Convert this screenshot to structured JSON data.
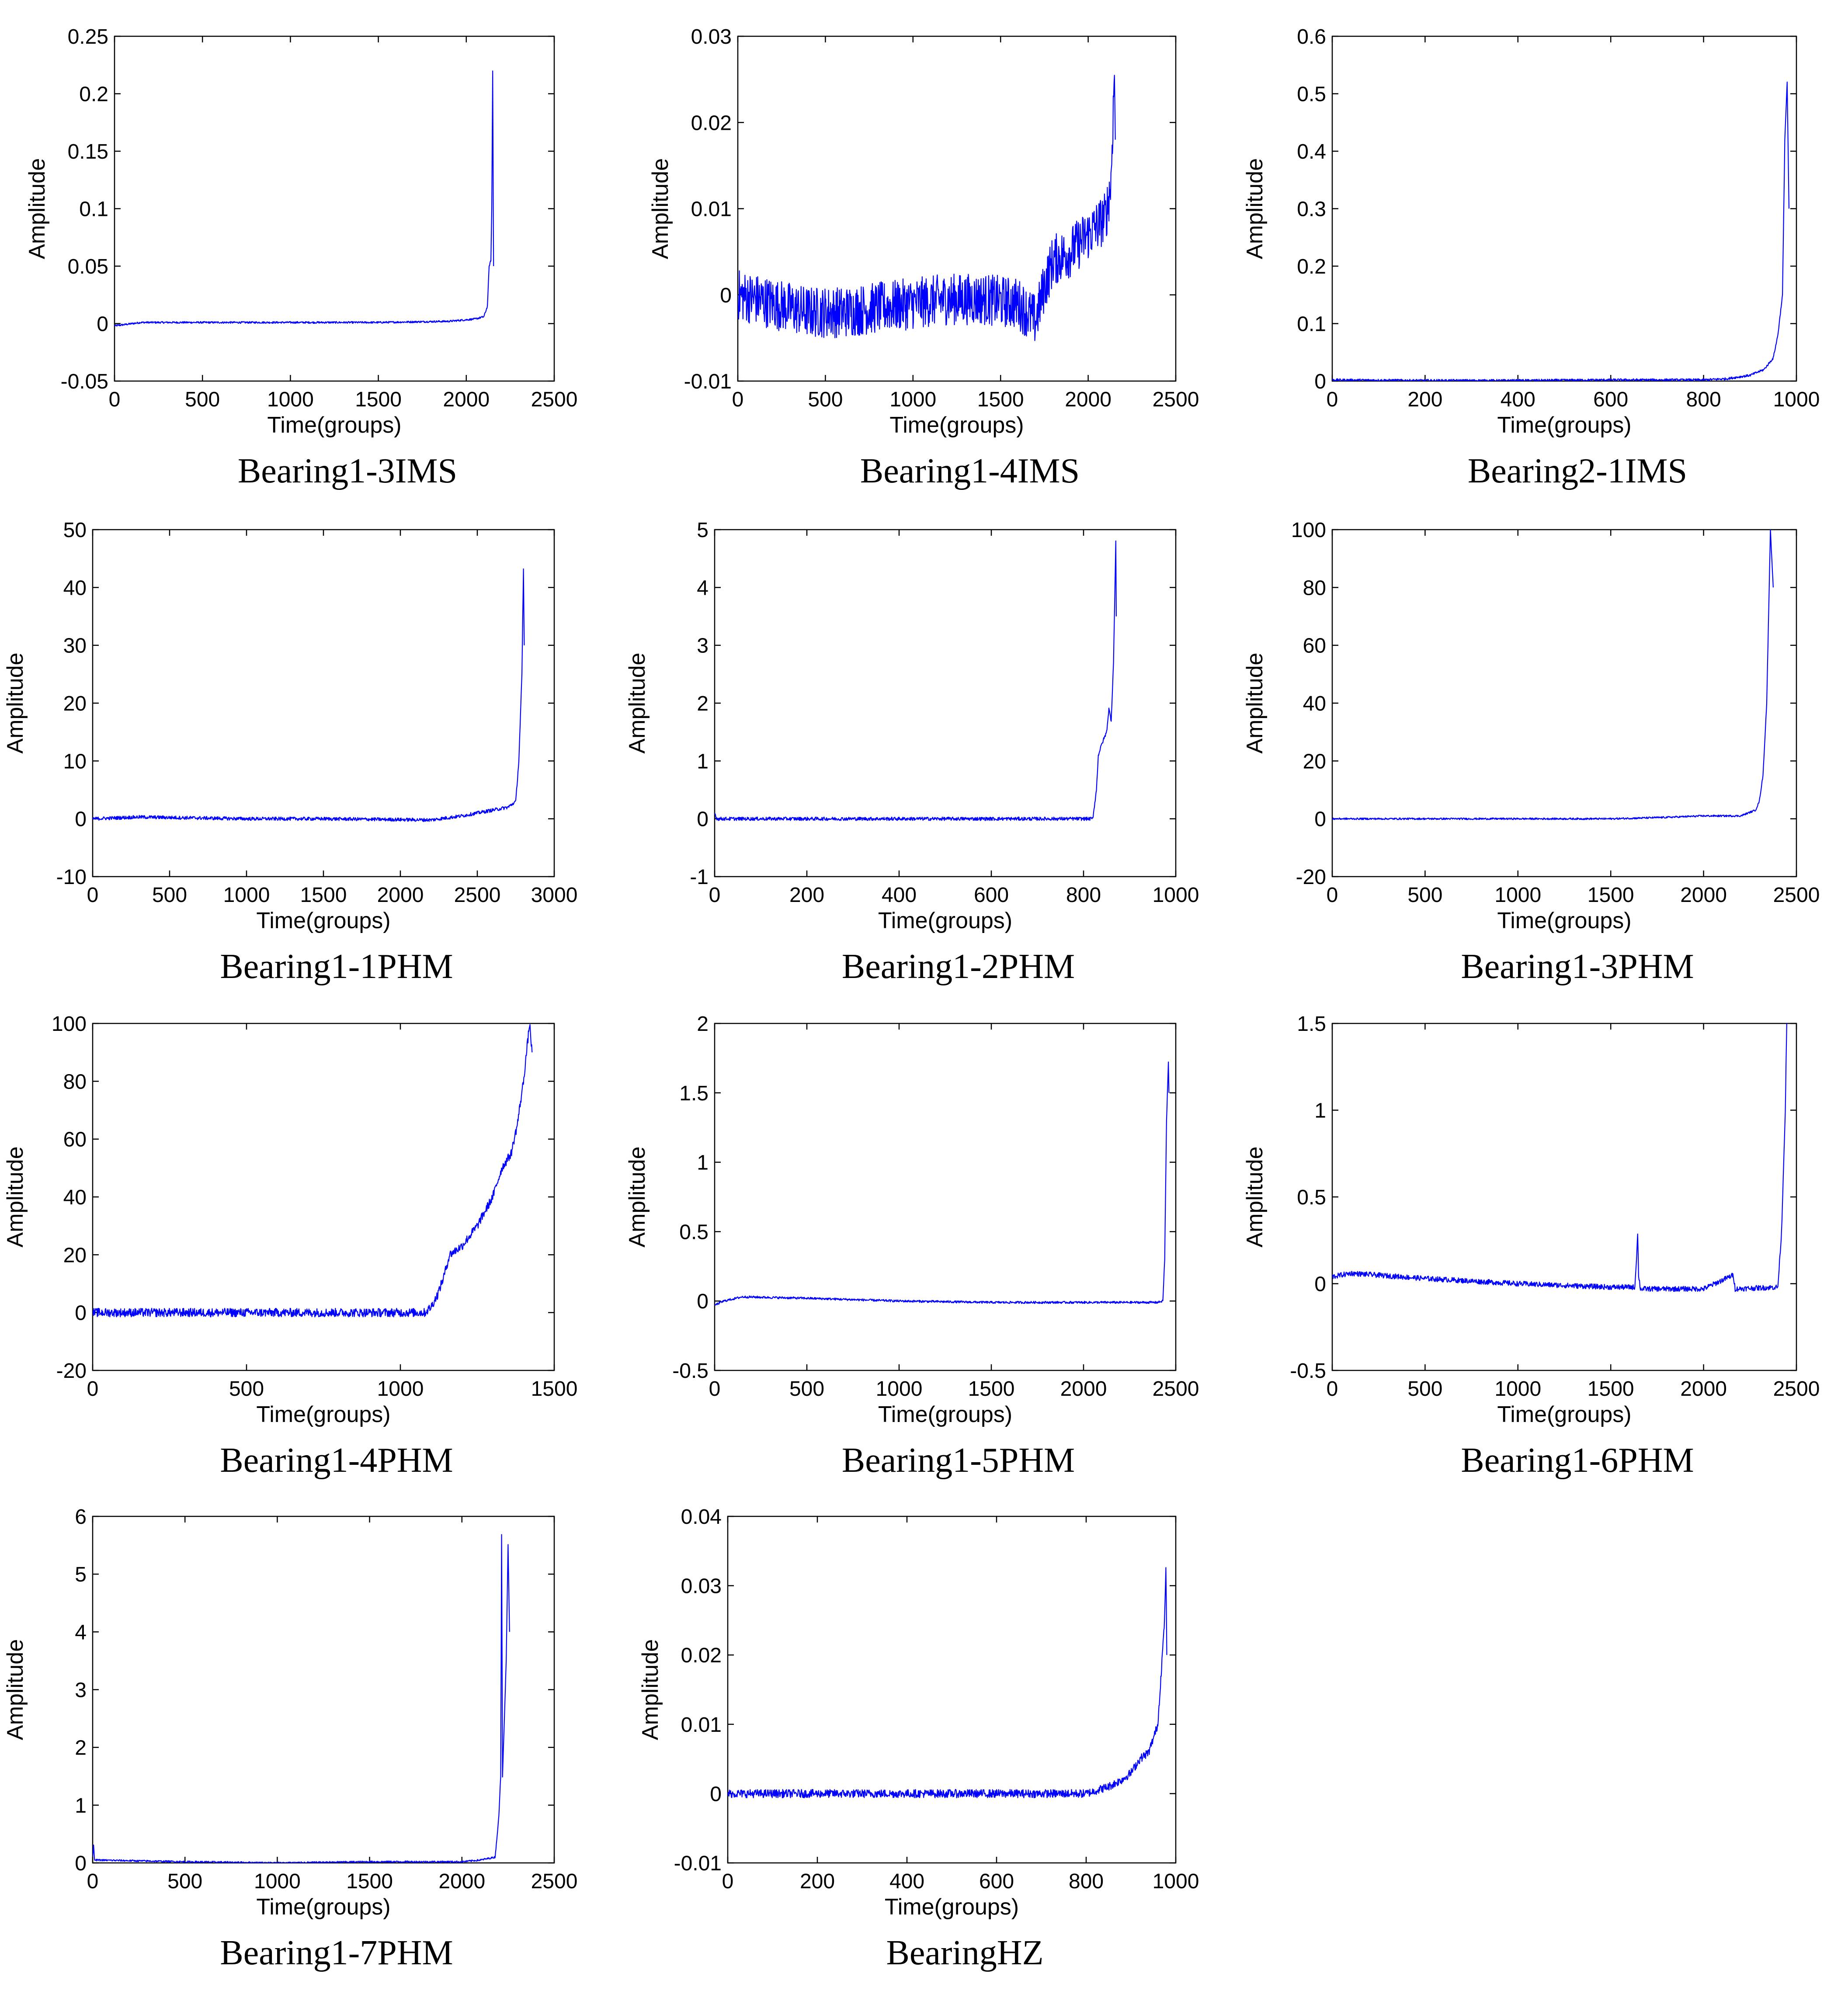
{
  "figure": {
    "series_color": "#0000ff"
  },
  "chart_data": [
    {
      "type": "line",
      "caption": "Bearing1-3IMS",
      "xlabel": "Time(groups)",
      "ylabel": "Amplitude",
      "xlim": [
        0,
        2500
      ],
      "ylim": [
        -0.05,
        0.25
      ],
      "xticks": [
        0,
        500,
        1000,
        1500,
        2000,
        2500
      ],
      "xtick_labels": [
        "0",
        "500",
        "1000",
        "1500",
        "2000",
        "2500"
      ],
      "yticks": [
        -0.05,
        0,
        0.05,
        0.1,
        0.15,
        0.2,
        0.25
      ],
      "ytick_labels": [
        "-0.05",
        "0",
        "0.05",
        "0.1",
        "0.15",
        "0.2",
        "0.25"
      ],
      "series": [
        {
          "name": "Bearing1-3IMS",
          "x": [
            0,
            150,
            500,
            1000,
            1500,
            1900,
            2050,
            2100,
            2120,
            2130,
            2140,
            2145,
            2150,
            2155
          ],
          "y": [
            -0.002,
            0.001,
            0.001,
            0.001,
            0.001,
            0.002,
            0.004,
            0.006,
            0.015,
            0.05,
            0.055,
            0.1,
            0.22,
            0.05
          ],
          "noise": 0.0008
        }
      ]
    },
    {
      "type": "line",
      "caption": "Bearing1-4IMS",
      "xlabel": "Time(groups)",
      "ylabel": "Amplitude",
      "xlim": [
        0,
        2500
      ],
      "ylim": [
        -0.01,
        0.03
      ],
      "xticks": [
        0,
        500,
        1000,
        1500,
        2000,
        2500
      ],
      "xtick_labels": [
        "0",
        "500",
        "1000",
        "1500",
        "2000",
        "2500"
      ],
      "yticks": [
        -0.01,
        0,
        0.01,
        0.02,
        0.03
      ],
      "ytick_labels": [
        "-0.01",
        "0",
        "0.01",
        "0.02",
        "0.03"
      ],
      "series": [
        {
          "name": "Bearing1-4IMS",
          "x": [
            0,
            200,
            400,
            600,
            800,
            1000,
            1200,
            1400,
            1600,
            1700,
            1750,
            1800,
            1900,
            2000,
            2050,
            2100,
            2130,
            2150,
            2155
          ],
          "y": [
            0.0,
            -0.001,
            -0.002,
            -0.002,
            -0.0015,
            -0.001,
            -0.0005,
            -0.0005,
            -0.001,
            -0.003,
            0.001,
            0.004,
            0.005,
            0.007,
            0.008,
            0.009,
            0.013,
            0.026,
            0.018
          ],
          "noise": 0.003
        }
      ]
    },
    {
      "type": "line",
      "caption": "Bearing2-1IMS",
      "xlabel": "Time(groups)",
      "ylabel": "Amplitude",
      "xlim": [
        0,
        1000
      ],
      "ylim": [
        0,
        0.6
      ],
      "xticks": [
        0,
        200,
        400,
        600,
        800,
        1000
      ],
      "xtick_labels": [
        "0",
        "200",
        "400",
        "600",
        "800",
        "1000"
      ],
      "yticks": [
        0,
        0.1,
        0.2,
        0.3,
        0.4,
        0.5,
        0.6
      ],
      "ytick_labels": [
        "0",
        "0.1",
        "0.2",
        "0.3",
        "0.4",
        "0.5",
        "0.6"
      ],
      "series": [
        {
          "name": "Bearing2-1IMS",
          "x": [
            0,
            200,
            400,
            600,
            800,
            850,
            900,
            930,
            950,
            960,
            970,
            975,
            980,
            984
          ],
          "y": [
            0.002,
            0.001,
            0.001,
            0.002,
            0.002,
            0.004,
            0.01,
            0.02,
            0.04,
            0.08,
            0.15,
            0.42,
            0.52,
            0.3
          ],
          "noise": 0.002
        }
      ]
    },
    {
      "type": "line",
      "caption": "Bearing1-1PHM",
      "xlabel": "Time(groups)",
      "ylabel": "Amplitude",
      "xlim": [
        0,
        3000
      ],
      "ylim": [
        -10,
        50
      ],
      "xticks": [
        0,
        500,
        1000,
        1500,
        2000,
        2500,
        3000
      ],
      "xtick_labels": [
        "0",
        "500",
        "1000",
        "1500",
        "2000",
        "2500",
        "3000"
      ],
      "yticks": [
        -10,
        0,
        10,
        20,
        30,
        40,
        50
      ],
      "ytick_labels": [
        "-10",
        "0",
        "10",
        "20",
        "30",
        "40",
        "50"
      ],
      "series": [
        {
          "name": "Bearing1-1PHM",
          "x": [
            0,
            300,
            1000,
            1500,
            2200,
            2400,
            2600,
            2700,
            2750,
            2770,
            2790,
            2800,
            2805
          ],
          "y": [
            0,
            0.3,
            0,
            0,
            -0.2,
            0.5,
            1.5,
            2,
            3,
            10,
            25,
            43,
            30
          ],
          "noise": 0.3
        }
      ]
    },
    {
      "type": "line",
      "caption": "Bearing1-2PHM",
      "xlabel": "Time(groups)",
      "ylabel": "Amplitude",
      "xlim": [
        0,
        1000
      ],
      "ylim": [
        -1,
        5
      ],
      "xticks": [
        0,
        200,
        400,
        600,
        800,
        1000
      ],
      "xtick_labels": [
        "0",
        "200",
        "400",
        "600",
        "800",
        "1000"
      ],
      "yticks": [
        -1,
        0,
        1,
        2,
        3,
        4,
        5
      ],
      "ytick_labels": [
        "-1",
        "0",
        "1",
        "2",
        "3",
        "4",
        "5"
      ],
      "series": [
        {
          "name": "Bearing1-2PHM",
          "x": [
            0,
            5,
            10,
            200,
            400,
            600,
            820,
            828,
            832,
            840,
            850,
            855,
            860,
            865,
            870,
            871
          ],
          "y": [
            0.1,
            0,
            0,
            0,
            0,
            0,
            0,
            0.5,
            1.1,
            1.3,
            1.5,
            1.9,
            1.7,
            2.7,
            4.8,
            3.5
          ],
          "noise": 0.03
        }
      ]
    },
    {
      "type": "line",
      "caption": "Bearing1-3PHM",
      "xlabel": "Time(groups)",
      "ylabel": "Amplitude",
      "xlim": [
        0,
        2500
      ],
      "ylim": [
        -20,
        100
      ],
      "xticks": [
        0,
        500,
        1000,
        1500,
        2000,
        2500
      ],
      "xtick_labels": [
        "0",
        "500",
        "1000",
        "1500",
        "2000",
        "2500"
      ],
      "yticks": [
        -20,
        0,
        20,
        40,
        60,
        80,
        100
      ],
      "ytick_labels": [
        "-20",
        "0",
        "20",
        "40",
        "60",
        "80",
        "100"
      ],
      "series": [
        {
          "name": "Bearing1-3PHM",
          "x": [
            0,
            500,
            1000,
            1500,
            1800,
            2000,
            2200,
            2280,
            2300,
            2320,
            2340,
            2360,
            2375
          ],
          "y": [
            0,
            0,
            0,
            0,
            0.5,
            1,
            1,
            3,
            6,
            15,
            40,
            100,
            80
          ],
          "noise": 0.3
        }
      ]
    },
    {
      "type": "line",
      "caption": "Bearing1-4PHM",
      "xlabel": "Time(groups)",
      "ylabel": "Amplitude",
      "xlim": [
        0,
        1500
      ],
      "ylim": [
        -20,
        100
      ],
      "xticks": [
        0,
        500,
        1000,
        1500
      ],
      "xtick_labels": [
        "0",
        "500",
        "1000",
        "1500"
      ],
      "yticks": [
        -20,
        0,
        20,
        40,
        60,
        80,
        100
      ],
      "ytick_labels": [
        "-20",
        "0",
        "20",
        "40",
        "60",
        "80",
        "100"
      ],
      "series": [
        {
          "name": "Bearing1-4PHM",
          "x": [
            0,
            500,
            1000,
            1080,
            1100,
            1120,
            1140,
            1160,
            1200,
            1250,
            1300,
            1330,
            1360,
            1380,
            1400,
            1420,
            1428
          ],
          "y": [
            0,
            0,
            0,
            0,
            2,
            6,
            12,
            20,
            23,
            30,
            40,
            50,
            55,
            65,
            80,
            100,
            90
          ],
          "noise": 1.5
        }
      ]
    },
    {
      "type": "line",
      "caption": "Bearing1-5PHM",
      "xlabel": "Time(groups)",
      "ylabel": "Amplitude",
      "xlim": [
        0,
        2500
      ],
      "ylim": [
        -0.5,
        2
      ],
      "xticks": [
        0,
        500,
        1000,
        1500,
        2000,
        2500
      ],
      "xtick_labels": [
        "0",
        "500",
        "1000",
        "1500",
        "2000",
        "2500"
      ],
      "yticks": [
        -0.5,
        0,
        0.5,
        1,
        1.5,
        2
      ],
      "ytick_labels": [
        "-0.5",
        "0",
        "0.5",
        "1",
        "1.5",
        "2"
      ],
      "series": [
        {
          "name": "Bearing1-5PHM",
          "x": [
            0,
            50,
            150,
            500,
            1000,
            1500,
            2000,
            2400,
            2430,
            2440,
            2450,
            2460,
            2463
          ],
          "y": [
            -0.03,
            0,
            0.03,
            0.02,
            0,
            -0.01,
            -0.01,
            -0.01,
            0,
            0.3,
            1.3,
            1.72,
            1.5
          ],
          "noise": 0.008
        }
      ]
    },
    {
      "type": "line",
      "caption": "Bearing1-6PHM",
      "xlabel": "Time(groups)",
      "ylabel": "Amplitude",
      "xlim": [
        0,
        2500
      ],
      "ylim": [
        -0.5,
        1.5
      ],
      "xticks": [
        0,
        500,
        1000,
        1500,
        2000,
        2500
      ],
      "xtick_labels": [
        "0",
        "500",
        "1000",
        "1500",
        "2000",
        "2500"
      ],
      "yticks": [
        -0.5,
        0,
        0.5,
        1,
        1.5
      ],
      "ytick_labels": [
        "-0.5",
        "0",
        "0.5",
        "1",
        "1.5"
      ],
      "series": [
        {
          "name": "Bearing1-6PHM",
          "x": [
            0,
            100,
            500,
            1000,
            1500,
            1630,
            1645,
            1650,
            1660,
            1700,
            2000,
            2160,
            2170,
            2400,
            2420,
            2440,
            2448
          ],
          "y": [
            0.04,
            0.06,
            0.03,
            0,
            -0.02,
            -0.02,
            0.28,
            0.05,
            -0.03,
            -0.03,
            -0.03,
            0.05,
            -0.03,
            -0.02,
            0.3,
            1.0,
            1.5
          ],
          "noise": 0.015
        }
      ]
    },
    {
      "type": "line",
      "caption": "Bearing1-7PHM",
      "xlabel": "Time(groups)",
      "ylabel": "Amplitude",
      "xlim": [
        0,
        2500
      ],
      "ylim": [
        0,
        6
      ],
      "xticks": [
        0,
        500,
        1000,
        1500,
        2000,
        2500
      ],
      "xtick_labels": [
        "0",
        "500",
        "1000",
        "1500",
        "2000",
        "2500"
      ],
      "yticks": [
        0,
        1,
        2,
        3,
        4,
        5,
        6
      ],
      "ytick_labels": [
        "0",
        "1",
        "2",
        "3",
        "4",
        "5",
        "6"
      ],
      "series": [
        {
          "name": "Bearing1-7PHM",
          "x": [
            0,
            5,
            10,
            500,
            1000,
            1500,
            2000,
            2100,
            2180,
            2200,
            2210,
            2215,
            2220,
            2230,
            2240,
            2250,
            2258
          ],
          "y": [
            0.1,
            0.3,
            0.05,
            0.02,
            0.0,
            0.02,
            0.02,
            0.05,
            0.1,
            0.8,
            1.5,
            5.7,
            1.5,
            2.5,
            3.5,
            5.5,
            4
          ],
          "noise": 0.015
        }
      ]
    },
    {
      "type": "line",
      "caption": "BearingHZ",
      "xlabel": "Time(groups)",
      "ylabel": "Amplitude",
      "xlim": [
        0,
        1000
      ],
      "ylim": [
        -0.01,
        0.04
      ],
      "xticks": [
        0,
        200,
        400,
        600,
        800,
        1000
      ],
      "xtick_labels": [
        "0",
        "200",
        "400",
        "600",
        "800",
        "1000"
      ],
      "yticks": [
        -0.01,
        0,
        0.01,
        0.02,
        0.03,
        0.04
      ],
      "ytick_labels": [
        "-0.01",
        "0",
        "0.01",
        "0.02",
        "0.03",
        "0.04"
      ],
      "series": [
        {
          "name": "BearingHZ",
          "x": [
            0,
            200,
            400,
            600,
            800,
            850,
            880,
            900,
            920,
            940,
            950,
            960,
            965,
            970,
            975,
            978,
            980
          ],
          "y": [
            0,
            0,
            0,
            0,
            0,
            0.001,
            0.002,
            0.003,
            0.005,
            0.006,
            0.008,
            0.01,
            0.015,
            0.02,
            0.025,
            0.033,
            0.02
          ],
          "noise": 0.0006
        }
      ]
    }
  ]
}
